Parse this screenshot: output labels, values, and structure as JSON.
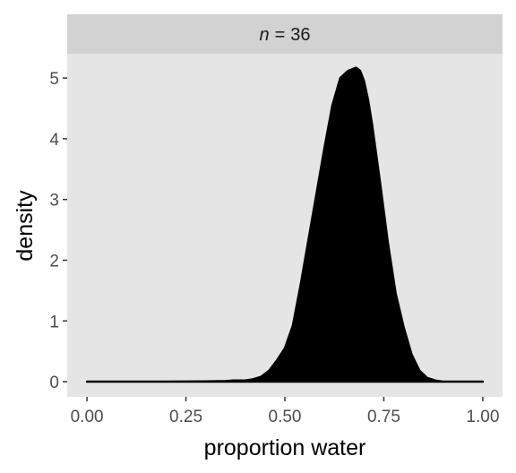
{
  "chart_data": {
    "type": "area",
    "facet_label": {
      "symbol": "n",
      "operator": "=",
      "value": "36"
    },
    "xlabel": "proportion water",
    "ylabel": "density",
    "xlim": [
      -0.05,
      1.05
    ],
    "ylim": [
      -0.25,
      5.4
    ],
    "x_ticks": [
      0,
      0.25,
      0.5,
      0.75,
      1
    ],
    "x_tick_labels": [
      "0.00",
      "0.25",
      "0.50",
      "0.75",
      "1.00"
    ],
    "y_ticks": [
      0,
      1,
      2,
      3,
      4,
      5
    ],
    "y_tick_labels": [
      "0",
      "1",
      "2",
      "3",
      "4",
      "5"
    ],
    "grid": false,
    "series": [
      {
        "fill": "#000000",
        "x": [
          0.0,
          0.1,
          0.2,
          0.3,
          0.35,
          0.37,
          0.4,
          0.42,
          0.44,
          0.46,
          0.48,
          0.5,
          0.52,
          0.54,
          0.56,
          0.58,
          0.6,
          0.62,
          0.64,
          0.66,
          0.68,
          0.69,
          0.7,
          0.71,
          0.72,
          0.74,
          0.76,
          0.78,
          0.8,
          0.82,
          0.84,
          0.86,
          0.88,
          0.9,
          0.95,
          1.0
        ],
        "y": [
          0.0,
          0.0,
          0.0,
          0.005,
          0.01,
          0.02,
          0.02,
          0.04,
          0.08,
          0.18,
          0.35,
          0.55,
          0.92,
          1.6,
          2.35,
          3.1,
          3.85,
          4.55,
          5.0,
          5.12,
          5.17,
          5.12,
          4.95,
          4.65,
          4.25,
          3.3,
          2.3,
          1.45,
          0.9,
          0.45,
          0.18,
          0.06,
          0.02,
          0.0,
          0.0,
          0.0
        ]
      }
    ]
  },
  "colors": {
    "panel_background": "#e5e5e5",
    "strip_background": "#d2d2d2",
    "tick_color": "#333333",
    "tick_label_color": "#4d4d4d",
    "fill": "#000000"
  }
}
